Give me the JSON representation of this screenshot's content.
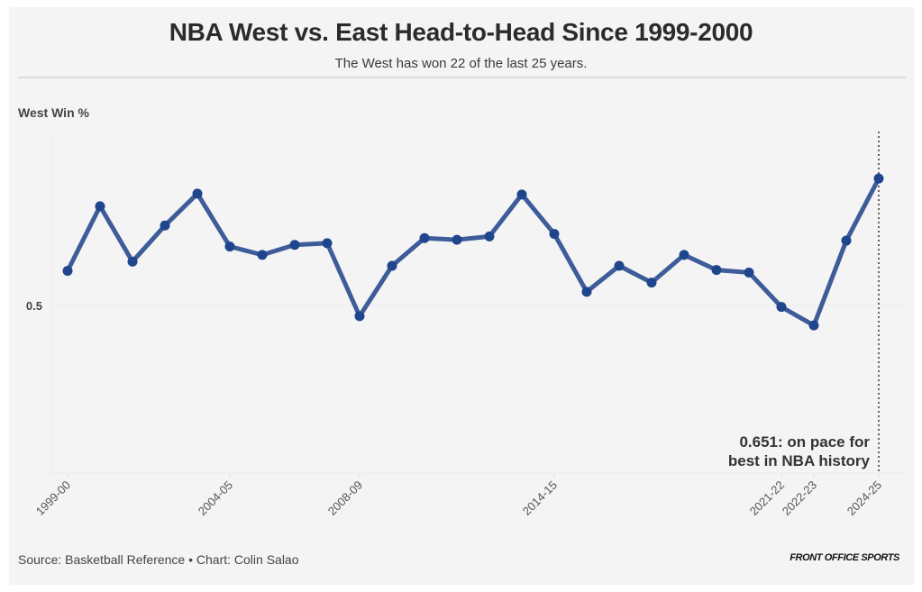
{
  "header": {
    "title": "NBA West vs. East Head-to-Head Since 1999-2000",
    "subtitle": "The West has won 22 of the last 25 years."
  },
  "footer": {
    "source": "Source: Basketball Reference • Chart: Colin Salao",
    "brand": "FRONT OFFICE SPORTS"
  },
  "colors": {
    "line": "#3d5c99",
    "marker": "#1f468c",
    "background": "#f4f4f4"
  },
  "chart_data": {
    "type": "line",
    "title": "NBA West vs. East Head-to-Head Since 1999-2000",
    "subtitle": "The West has won 22 of the last 25 years.",
    "xlabel": "",
    "ylabel": "West Win %",
    "ylim": [
      0.3,
      0.707
    ],
    "yticks": [
      {
        "value": 0.5,
        "label": "0.5"
      }
    ],
    "grid": true,
    "x": [
      "1999-00",
      "2000-01",
      "2001-02",
      "2002-03",
      "2003-04",
      "2004-05",
      "2005-06",
      "2006-07",
      "2007-08",
      "2008-09",
      "2009-10",
      "2010-11",
      "2011-12",
      "2012-13",
      "2013-14",
      "2014-15",
      "2015-16",
      "2016-17",
      "2017-18",
      "2018-19",
      "2019-20",
      "2020-21",
      "2021-22",
      "2022-23",
      "2023-24",
      "2024-25"
    ],
    "xtick_labels_shown": [
      "1999-00",
      "2004-05",
      "2008-09",
      "2014-15",
      "2021-22",
      "2022-23",
      "2024-25"
    ],
    "series": [
      {
        "name": "West Win %",
        "values": [
          0.541,
          0.618,
          0.552,
          0.595,
          0.633,
          0.57,
          0.56,
          0.572,
          0.574,
          0.487,
          0.547,
          0.58,
          0.578,
          0.582,
          0.632,
          0.585,
          0.516,
          0.547,
          0.527,
          0.56,
          0.542,
          0.539,
          0.498,
          0.476,
          0.577,
          0.651
        ]
      }
    ],
    "annotations": [
      {
        "x": "2024-25",
        "lines": [
          "0.651: on pace for",
          "best in NBA history"
        ],
        "style": "dotted-vertical-line"
      }
    ]
  }
}
